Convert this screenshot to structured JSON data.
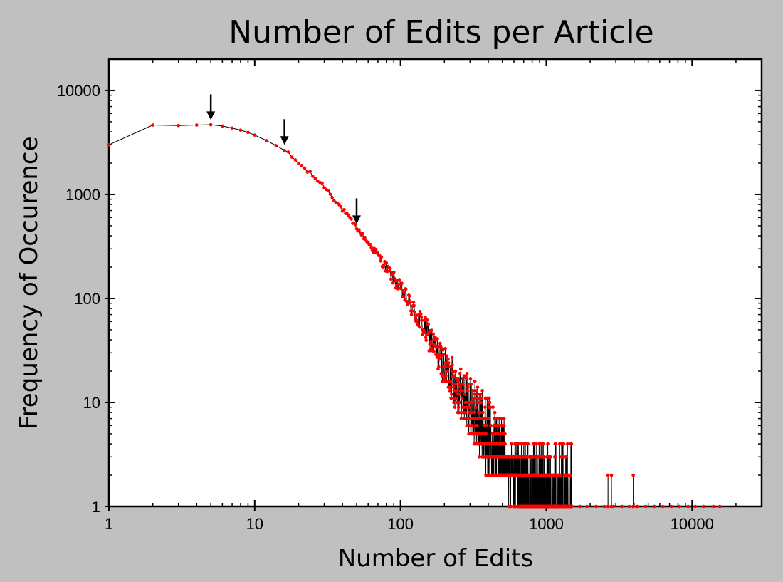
{
  "chart_data": {
    "type": "scatter",
    "title": "Number of Edits per Article",
    "xlabel": "Number of Edits",
    "ylabel": "Frequency of Occurence",
    "x_scale": "log",
    "y_scale": "log",
    "xlim": [
      1,
      30000
    ],
    "ylim": [
      1,
      20000
    ],
    "x_ticks": [
      1,
      10,
      100,
      1000,
      10000
    ],
    "x_tick_labels": [
      "1",
      "10",
      "100",
      "1000",
      "10000"
    ],
    "y_ticks": [
      1,
      10,
      100,
      1000,
      10000
    ],
    "y_tick_labels": [
      "1",
      "10",
      "100",
      "1000",
      "10000"
    ],
    "grid": false,
    "legend": "none",
    "series": [
      {
        "line_color": "#000000",
        "marker_color": "#ff0000",
        "head_points": [
          [
            1,
            3000
          ],
          [
            2,
            4650
          ],
          [
            3,
            4600
          ],
          [
            4,
            4650
          ],
          [
            5,
            4680
          ],
          [
            6,
            4550
          ],
          [
            7,
            4350
          ],
          [
            8,
            4150
          ],
          [
            9,
            3950
          ],
          [
            10,
            3720
          ],
          [
            12,
            3300
          ],
          [
            14,
            2950
          ],
          [
            16,
            2650
          ]
        ],
        "body_segments": [
          [
            16,
            2650
          ],
          [
            20,
            2000
          ],
          [
            30,
            1200
          ],
          [
            50,
            480
          ],
          [
            70,
            260
          ],
          [
            100,
            125
          ],
          [
            150,
            48
          ],
          [
            200,
            22
          ],
          [
            300,
            9
          ],
          [
            400,
            5
          ],
          [
            500,
            3.2
          ],
          [
            700,
            2
          ],
          [
            1000,
            1.4
          ],
          [
            1500,
            1.1
          ]
        ],
        "tail_singles_x": [
          1700,
          1900,
          2200,
          2500,
          2900,
          3300,
          3700,
          4200,
          4800,
          5500,
          6300,
          7200,
          8200,
          9400,
          10500,
          12000,
          14000,
          15500
        ],
        "tail_doubles_x": [
          2650,
          2800,
          3950
        ]
      }
    ],
    "annotations": [
      {
        "type": "arrow",
        "x": 5,
        "y": 5200
      },
      {
        "type": "arrow",
        "x": 16,
        "y": 3000
      },
      {
        "type": "arrow",
        "x": 50,
        "y": 520
      }
    ]
  }
}
